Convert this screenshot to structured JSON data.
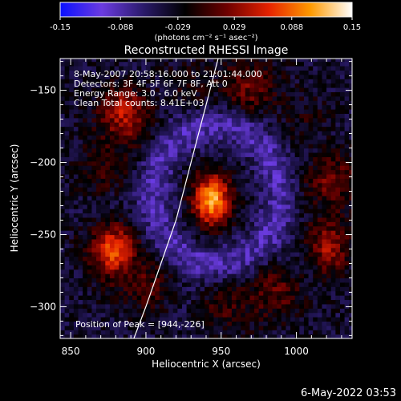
{
  "chart_data": {
    "type": "heatmap",
    "title": "Reconstructed RHESSI Image",
    "xlabel": "Heliocentric X (arcsec)",
    "ylabel": "Heliocentric Y (arcsec)",
    "xlim": [
      843,
      1037
    ],
    "ylim": [
      -322,
      -128
    ],
    "x_ticks": [
      850,
      900,
      950,
      1000
    ],
    "y_ticks": [
      -150,
      -200,
      -250,
      -300
    ],
    "colorbar": {
      "range": [
        -0.15,
        0.15
      ],
      "ticks": [
        "-0.15",
        "-0.088",
        "-0.029",
        "0.029",
        "0.088",
        "0.15"
      ],
      "label": "(photons cm⁻² s⁻¹ asec⁻²)",
      "colors": [
        "#0a10ff",
        "#6b3be0",
        "#2a1a6a",
        "#000000",
        "#6e0000",
        "#e52200",
        "#ff9a00",
        "#ffffff"
      ]
    },
    "annotations": [
      "8-May-2007 20:58:16.000 to 21:01:44.000",
      "Detectors: 3F 4F 5F 6F 7F 8F, Att 0",
      "Energy Range: 3.0 - 6.0 keV",
      "Clean     Total counts: 8.41E+03"
    ],
    "peak_label": "Position of Peak = [944,-226]",
    "peak": [
      944,
      -226
    ],
    "limb_curve": [
      [
        892,
        -322
      ],
      [
        900,
        -300
      ],
      [
        910,
        -270
      ],
      [
        920,
        -240
      ],
      [
        930,
        -200
      ],
      [
        940,
        -160
      ],
      [
        948,
        -128
      ]
    ],
    "sources": [
      {
        "name": "central",
        "x": 944,
        "y": -226,
        "sx": 9,
        "sy": 13,
        "amp": 0.15
      },
      {
        "name": "ring-left-lower",
        "x": 878,
        "y": -262,
        "sx": 9,
        "sy": 12,
        "amp": 0.07
      },
      {
        "name": "ring-right-lower",
        "x": 1022,
        "y": -262,
        "sx": 8,
        "sy": 12,
        "amp": 0.06
      },
      {
        "name": "ring-top-left",
        "x": 885,
        "y": -160,
        "sx": 10,
        "sy": 10,
        "amp": 0.05
      }
    ],
    "ring": {
      "cx": 947,
      "cy": -222,
      "rx": 77,
      "ry": 77,
      "amp": 0.045,
      "width": 14
    },
    "background_amp": -0.04,
    "core_dim_ring_amp": -0.05
  },
  "footer": {
    "date": "6-May-2022 03:53"
  }
}
